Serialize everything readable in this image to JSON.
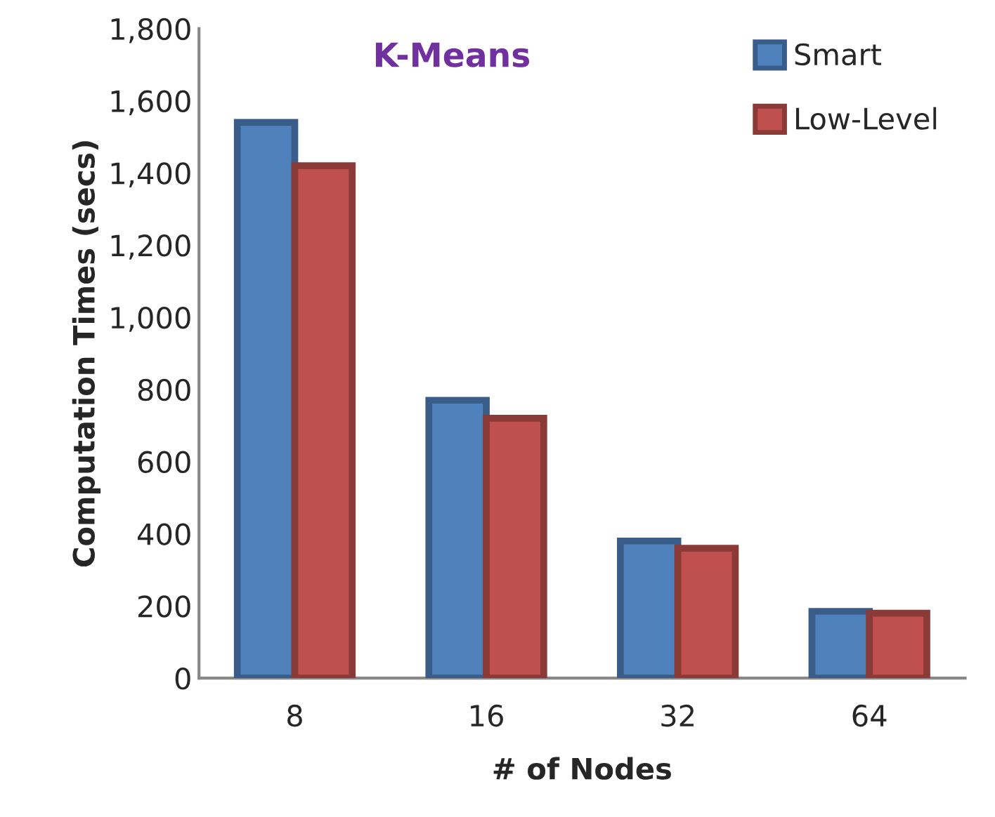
{
  "chart_data": {
    "type": "bar",
    "title": "K-Means",
    "xlabel": "# of Nodes",
    "ylabel": "Computation Times (secs)",
    "categories": [
      "8",
      "16",
      "32",
      "64"
    ],
    "series": [
      {
        "name": "Smart",
        "color": "#4f81bd",
        "values": [
          1540,
          770,
          380,
          185
        ]
      },
      {
        "name": "Low-Level",
        "color": "#c0504d",
        "values": [
          1420,
          720,
          360,
          180
        ]
      }
    ],
    "ylim": [
      0,
      1800
    ],
    "yticks": [
      {
        "value": 0,
        "label": "0"
      },
      {
        "value": 200,
        "label": "200"
      },
      {
        "value": 400,
        "label": "400"
      },
      {
        "value": 600,
        "label": "600"
      },
      {
        "value": 800,
        "label": "800"
      },
      {
        "value": 1000,
        "label": "1,000"
      },
      {
        "value": 1200,
        "label": "1,200"
      },
      {
        "value": 1400,
        "label": "1,400"
      },
      {
        "value": 1600,
        "label": "1,600"
      },
      {
        "value": 1800,
        "label": "1,800"
      }
    ],
    "grid": false,
    "legend": "top right"
  }
}
